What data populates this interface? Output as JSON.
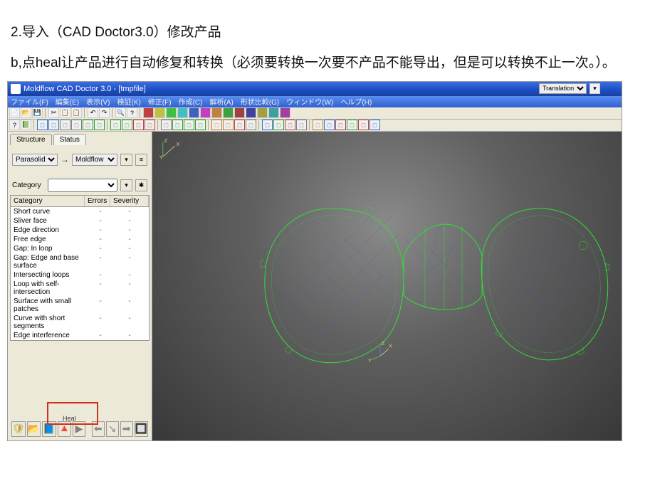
{
  "doc_title": "2.导入（CAD Doctor3.0）修改产品",
  "doc_body": "  b,点heal让产品进行自动修复和转换（必须要转换一次要不产品不能导出，但是可以转换不止一次。）。",
  "app": {
    "title": "Moldflow CAD Doctor 3.0 - [tmpfile]",
    "menus": [
      "ファイル(F)",
      "編集(E)",
      "表示(V)",
      "検証(K)",
      "修正(F)",
      "作成(C)",
      "解析(A)",
      "形状比較(G)",
      "ウィンドウ(W)",
      "ヘルプ(H)"
    ],
    "translation_mode": "Translation",
    "toolbar_colors": [
      "#c04040",
      "#c0c040",
      "#40c040",
      "#40c0c0",
      "#4060c0",
      "#c040c0",
      "#c08040",
      "#40a040",
      "#a04040",
      "#4040a0",
      "#a0a040",
      "#40a0a0",
      "#a040a0"
    ],
    "toolbar2_colors": [
      "#3070d0",
      "#3070d0",
      "#808080",
      "#808080",
      "#30a030",
      "#30a030",
      "#30a030",
      "#30a030",
      "#c04040",
      "#c04040",
      "#808080",
      "#30a030",
      "#30a030",
      "#30a030",
      "#c08030",
      "#c08030",
      "#c04040",
      "#808080",
      "#3070d0",
      "#30a030",
      "#c04040",
      "#808080",
      "#c08030",
      "#3070d0",
      "#a04040",
      "#30a030",
      "#c04040",
      "#3070d0"
    ]
  },
  "sidepanel": {
    "tabs": {
      "structure": "Structure",
      "status": "Status"
    },
    "source": "Parasolid",
    "target": "Moldflow",
    "category_label": "Category",
    "table": {
      "headers": [
        "Category",
        "Errors",
        "Severity"
      ],
      "rows": [
        "Short curve",
        "Sliver face",
        "Edge direction",
        "Free edge",
        "Gap: In loop",
        "Gap: Edge and base surface",
        "Intersecting loops",
        "Loop with self-intersection",
        "Surface with small patches",
        "Curve with short segments",
        "Edge interference"
      ]
    },
    "bottom_btns": [
      "🛡",
      "📂",
      "📘",
      "🔺",
      "▶"
    ],
    "nav_btns": [
      "⬅",
      "↘",
      "➡",
      "🔲"
    ],
    "heal_label": "Heal"
  },
  "viewport": {
    "axis_labels": {
      "x": "X",
      "y": "Y",
      "z": "Z"
    },
    "grid_color": "#4a5ab0",
    "mesh_color": "#30e030",
    "bg_inner": "#8a8a8a",
    "bg_outer": "#383838"
  }
}
